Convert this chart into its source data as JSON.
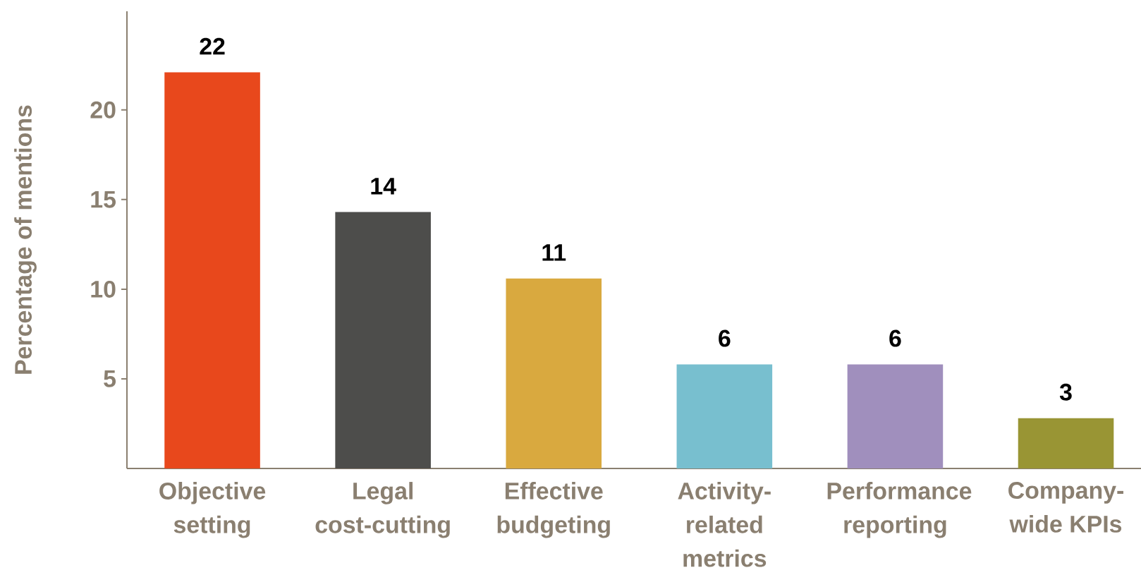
{
  "chart_data": {
    "type": "bar",
    "ylabel": "Percentage of mentions",
    "categories": [
      "Objective setting",
      "Legal cost-cutting",
      "Effective budgeting",
      "Activity-related metrics",
      "Performance reporting",
      "Company-wide KPIs"
    ],
    "values": [
      22.1,
      14.3,
      10.6,
      5.8,
      5.8,
      2.8
    ],
    "value_labels": [
      "22",
      "14",
      "11",
      "6",
      "6",
      "3"
    ],
    "colors": [
      "#e8481c",
      "#4d4d4b",
      "#d9a93f",
      "#78bfcf",
      "#a08fbd",
      "#999534"
    ],
    "ylim": [
      0,
      25.5
    ],
    "yticks": [
      5,
      10,
      15,
      20
    ]
  }
}
